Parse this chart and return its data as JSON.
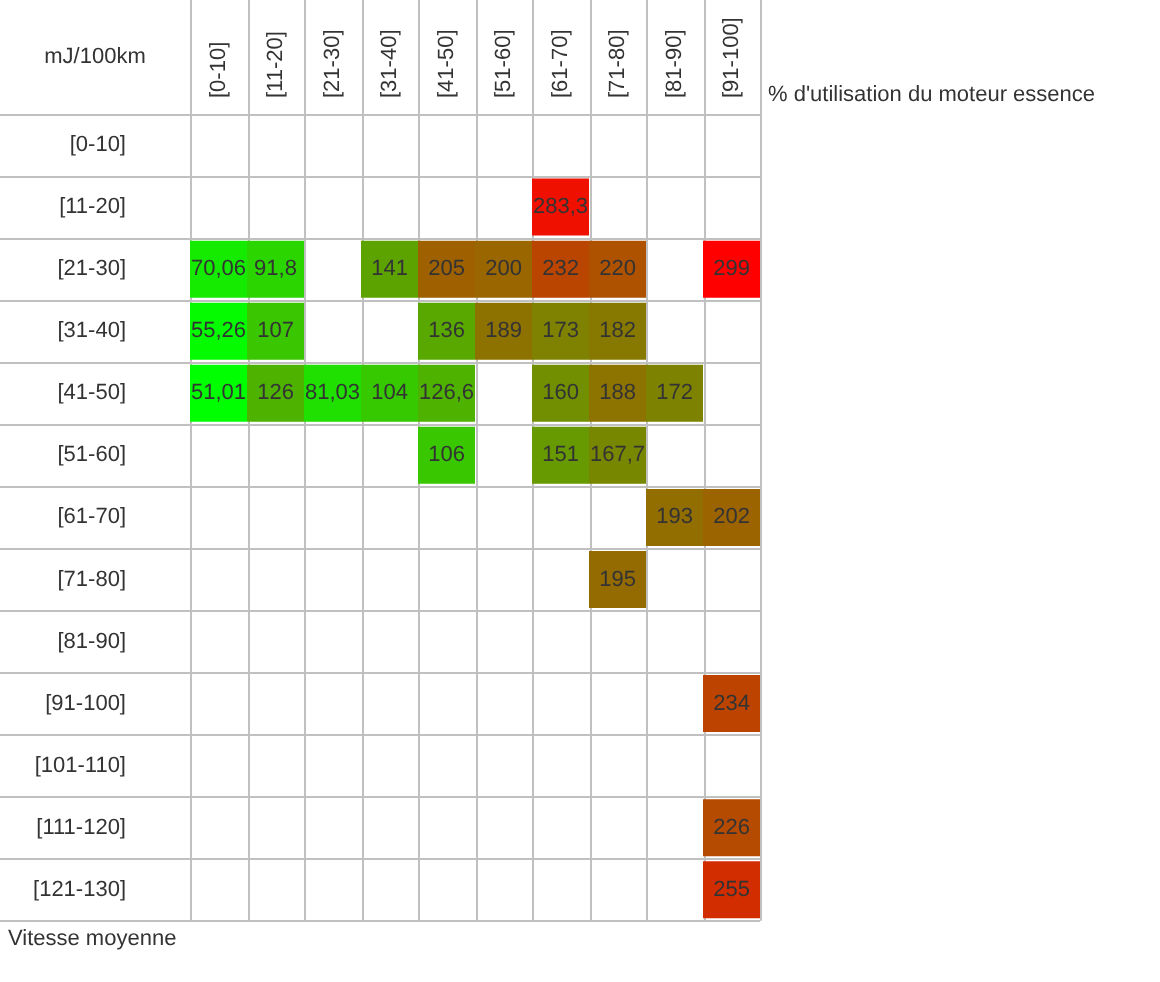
{
  "chart_data": {
    "type": "heatmap",
    "title": "mJ/100km",
    "xlabel": "% d'utilisation du moteur essence",
    "ylabel": "Vitesse moyenne",
    "grid": true,
    "categories": [
      "[0-10]",
      "[11-20]",
      "[21-30]",
      "[31-40]",
      "[41-50]",
      "[51-60]",
      "[61-70]",
      "[71-80]",
      "[81-90]",
      "[91-100]"
    ],
    "y_categories": [
      "[0-10]",
      "[11-20]",
      "[21-30]",
      "[31-40]",
      "[41-50]",
      "[51-60]",
      "[61-70]",
      "[71-80]",
      "[81-90]",
      "[91-100]",
      "[101-110]",
      "[111-120]",
      "[121-130]"
    ],
    "cells": [
      [
        null,
        null,
        null,
        null,
        null,
        null,
        null,
        null,
        null,
        null
      ],
      [
        null,
        null,
        null,
        null,
        null,
        null,
        283.3,
        null,
        null,
        null
      ],
      [
        70.06,
        91.8,
        null,
        141,
        205,
        200,
        232,
        220,
        null,
        299
      ],
      [
        55.26,
        107,
        null,
        null,
        136,
        189,
        173,
        182,
        null,
        null
      ],
      [
        51.01,
        126,
        81.03,
        104,
        126.6,
        null,
        160,
        188,
        172,
        null
      ],
      [
        null,
        null,
        null,
        null,
        106,
        null,
        151,
        167.7,
        null,
        null
      ],
      [
        null,
        null,
        null,
        null,
        null,
        null,
        null,
        null,
        193,
        202
      ],
      [
        null,
        null,
        null,
        null,
        null,
        null,
        null,
        195,
        null,
        null
      ],
      [
        null,
        null,
        null,
        null,
        null,
        null,
        null,
        null,
        null,
        null
      ],
      [
        null,
        null,
        null,
        null,
        null,
        null,
        null,
        null,
        null,
        234
      ],
      [
        null,
        null,
        null,
        null,
        null,
        null,
        null,
        null,
        null,
        null
      ],
      [
        null,
        null,
        null,
        null,
        null,
        null,
        null,
        null,
        null,
        226
      ],
      [
        null,
        null,
        null,
        null,
        null,
        null,
        null,
        null,
        null,
        255
      ]
    ],
    "cell_labels": [
      [
        null,
        null,
        null,
        null,
        null,
        null,
        null,
        null,
        null,
        null
      ],
      [
        null,
        null,
        null,
        null,
        null,
        null,
        "283,3",
        null,
        null,
        null
      ],
      [
        "70,06",
        "91,8",
        null,
        "141",
        "205",
        "200",
        "232",
        "220",
        null,
        "299"
      ],
      [
        "55,26",
        "107",
        null,
        null,
        "136",
        "189",
        "173",
        "182",
        null,
        null
      ],
      [
        "51,01",
        "126",
        "81,03",
        "104",
        "126,6",
        null,
        "160",
        "188",
        "172",
        null
      ],
      [
        null,
        null,
        null,
        null,
        "106",
        null,
        "151",
        "167,7",
        null,
        null
      ],
      [
        null,
        null,
        null,
        null,
        null,
        null,
        null,
        null,
        "193",
        "202"
      ],
      [
        null,
        null,
        null,
        null,
        null,
        null,
        null,
        "195",
        null,
        null
      ],
      [
        null,
        null,
        null,
        null,
        null,
        null,
        null,
        null,
        null,
        null
      ],
      [
        null,
        null,
        null,
        null,
        null,
        null,
        null,
        null,
        null,
        "234"
      ],
      [
        null,
        null,
        null,
        null,
        null,
        null,
        null,
        null,
        null,
        null
      ],
      [
        null,
        null,
        null,
        null,
        null,
        null,
        null,
        null,
        null,
        "226"
      ],
      [
        null,
        null,
        null,
        null,
        null,
        null,
        null,
        null,
        null,
        "255"
      ]
    ]
  }
}
